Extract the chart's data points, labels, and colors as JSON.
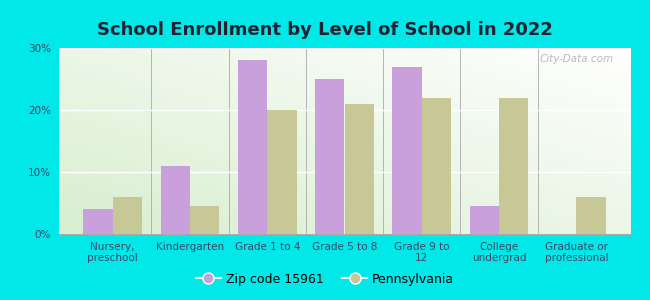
{
  "title": "School Enrollment by Level of School in 2022",
  "categories": [
    "Nursery,\npreschool",
    "Kindergarten",
    "Grade 1 to 4",
    "Grade 5 to 8",
    "Grade 9 to\n12",
    "College\nundergrad",
    "Graduate or\nprofessional"
  ],
  "zip_values": [
    4.0,
    11.0,
    28.0,
    25.0,
    27.0,
    4.5,
    0.0
  ],
  "pa_values": [
    6.0,
    4.5,
    20.0,
    21.0,
    22.0,
    22.0,
    6.0
  ],
  "zip_color": "#c9a0dc",
  "pa_color": "#c8c896",
  "zip_label": "Zip code 15961",
  "pa_label": "Pennsylvania",
  "background_color": "#00e8e8",
  "ylim": [
    0,
    30
  ],
  "yticks": [
    0,
    10,
    20,
    30
  ],
  "ytick_labels": [
    "0%",
    "10%",
    "20%",
    "30%"
  ],
  "bar_width": 0.38,
  "title_fontsize": 13,
  "tick_fontsize": 7.5,
  "legend_fontsize": 9,
  "label_color": "#444466",
  "watermark": "City-Data.com"
}
